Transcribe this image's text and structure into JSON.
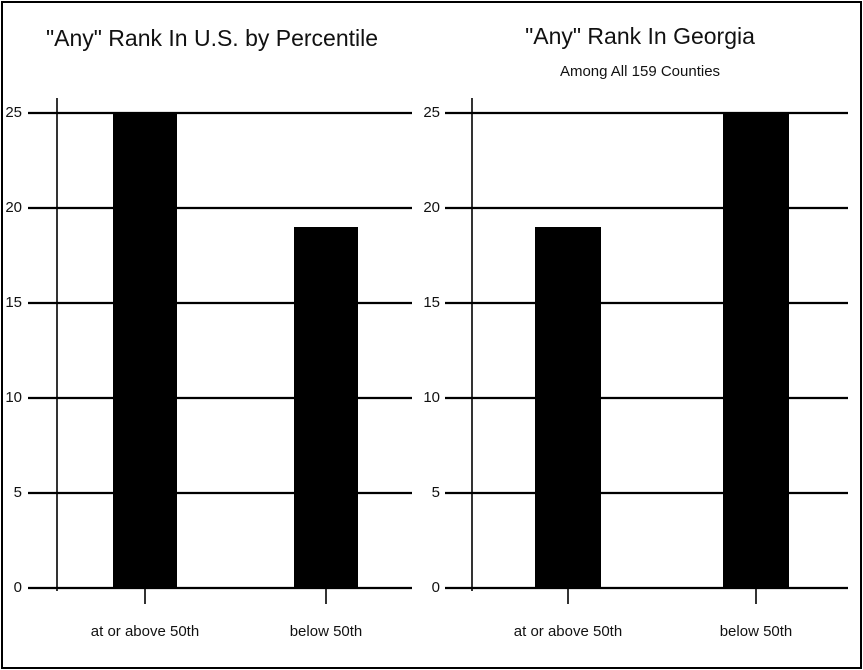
{
  "chart_data": [
    {
      "type": "bar",
      "title": "\"Any\" Rank In U.S. by Percentile",
      "categories": [
        "at or above 50th",
        "below 50th"
      ],
      "values": [
        25,
        19
      ],
      "color": "#000000",
      "ylim": [
        0,
        25
      ],
      "yticks": [
        0,
        5,
        10,
        15,
        20,
        25
      ],
      "grid": true
    },
    {
      "type": "bar",
      "title": "\"Any\" Rank In Georgia",
      "subtitle": "Among All 159 Counties",
      "categories": [
        "at or above 50th",
        "below 50th"
      ],
      "values": [
        19,
        25
      ],
      "color": "#000000",
      "ylim": [
        0,
        25
      ],
      "yticks": [
        0,
        5,
        10,
        15,
        20,
        25
      ],
      "grid": true
    }
  ]
}
